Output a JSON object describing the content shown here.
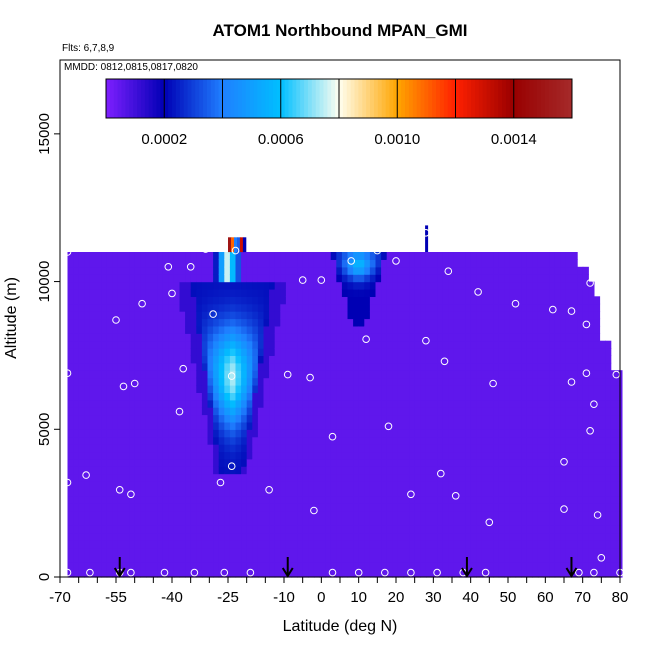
{
  "chart_data": {
    "type": "heatmap",
    "title": "ATOM1 Northbound MPAN_GMI",
    "flights_note": "Flts: 6,7,8,9",
    "dates_note": "MMDD: 0812,0815,0817,0820",
    "xlabel": "Latitude (deg N)",
    "ylabel": "Altitude (m)",
    "xlim": [
      -70,
      80
    ],
    "ylim": [
      0,
      17500
    ],
    "x_ticks": [
      -70,
      -55,
      -40,
      -25,
      -10,
      0,
      10,
      20,
      30,
      40,
      50,
      60,
      70,
      80
    ],
    "y_ticks": [
      0,
      5000,
      10000,
      15000
    ],
    "colorbar": {
      "range": [
        0,
        0.0016
      ],
      "tick_values": [
        0.0002,
        0.0006,
        0.001,
        0.0014
      ],
      "tick_labels": [
        "0.0002",
        "0.0006",
        "0.0010",
        "0.0014"
      ],
      "colors": [
        "#7f1fff",
        "#0000b4",
        "#1f7fff",
        "#00bfff",
        "#fffff0",
        "#ffa500",
        "#ff2000",
        "#990000",
        "#a52a2a"
      ]
    },
    "background_level": 5e-05,
    "features": [
      {
        "name": "southern tropics MPAN plume",
        "lat": [
          -36,
          -15
        ],
        "alt": [
          3500,
          10000
        ],
        "peak": 0.00075
      },
      {
        "name": "northern tropics upper plume",
        "lat": [
          5,
          15
        ],
        "alt": [
          8500,
          11000
        ],
        "peak": 0.0006
      },
      {
        "name": "hotspot near tropopause",
        "lat": [
          -25,
          -20
        ],
        "alt": [
          10500,
          11500
        ],
        "peak": 0.0015
      }
    ],
    "profile_markers_lat": [
      -54,
      -9,
      39,
      67
    ],
    "sample_points": [
      [
        -68,
        11000
      ],
      [
        -68,
        6900
      ],
      [
        -68,
        3200
      ],
      [
        -68,
        150
      ],
      [
        -63,
        3450
      ],
      [
        -62,
        150
      ],
      [
        -55,
        8700
      ],
      [
        -54,
        2950
      ],
      [
        -54,
        150
      ],
      [
        -53,
        6450
      ],
      [
        -51,
        2800
      ],
      [
        -51,
        150
      ],
      [
        -50,
        6550
      ],
      [
        -48,
        9250
      ],
      [
        -42,
        150
      ],
      [
        -41,
        10500
      ],
      [
        -40,
        9600
      ],
      [
        -38,
        5600
      ],
      [
        -37,
        7050
      ],
      [
        -35,
        10500
      ],
      [
        -34,
        150
      ],
      [
        -31,
        11100
      ],
      [
        -29,
        8900
      ],
      [
        -27,
        3200
      ],
      [
        -26,
        150
      ],
      [
        -24,
        3750
      ],
      [
        -24,
        6800
      ],
      [
        -23,
        11050
      ],
      [
        -19,
        150
      ],
      [
        -17,
        11250
      ],
      [
        -14,
        2950
      ],
      [
        -9,
        6850
      ],
      [
        -5,
        10050
      ],
      [
        -3,
        6750
      ],
      [
        -2,
        2250
      ],
      [
        0,
        10050
      ],
      [
        3,
        4750
      ],
      [
        3,
        150
      ],
      [
        8,
        10700
      ],
      [
        10,
        150
      ],
      [
        12,
        8050
      ],
      [
        15,
        11050
      ],
      [
        17,
        150
      ],
      [
        18,
        5100
      ],
      [
        20,
        10700
      ],
      [
        24,
        2800
      ],
      [
        24,
        150
      ],
      [
        28,
        8000
      ],
      [
        28,
        11650
      ],
      [
        31,
        150
      ],
      [
        32,
        3500
      ],
      [
        33,
        7300
      ],
      [
        34,
        10350
      ],
      [
        36,
        2750
      ],
      [
        38,
        150
      ],
      [
        42,
        9650
      ],
      [
        44,
        150
      ],
      [
        45,
        1850
      ],
      [
        46,
        6550
      ],
      [
        52,
        9250
      ],
      [
        62,
        9050
      ],
      [
        65,
        2300
      ],
      [
        65,
        3900
      ],
      [
        67,
        9000
      ],
      [
        67,
        6600
      ],
      [
        69,
        150
      ],
      [
        70,
        11200
      ],
      [
        71,
        6900
      ],
      [
        71,
        8550
      ],
      [
        72,
        9950
      ],
      [
        72,
        4950
      ],
      [
        73,
        150
      ],
      [
        73,
        5850
      ],
      [
        74,
        2100
      ],
      [
        75,
        650
      ],
      [
        77,
        9850
      ],
      [
        79,
        6850
      ],
      [
        80,
        150
      ]
    ]
  }
}
